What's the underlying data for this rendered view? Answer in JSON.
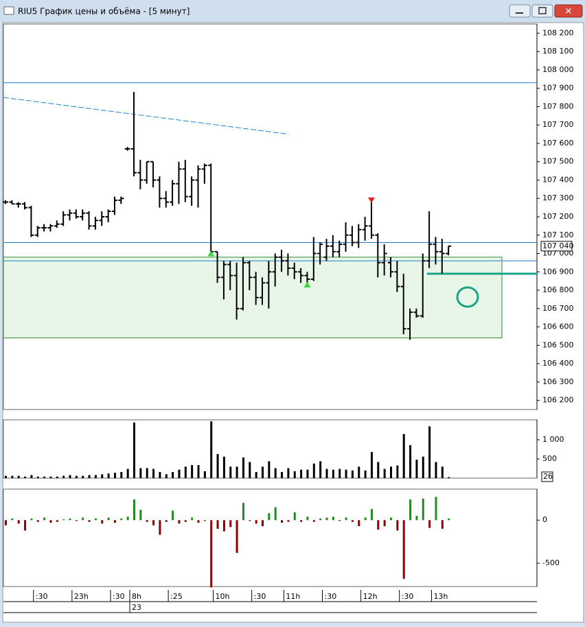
{
  "window": {
    "title": "RIU5 График цены и объёма - [5 минут]"
  },
  "chart_data": [
    {
      "type": "ohlc",
      "color": "#000000",
      "ylim": [
        106150,
        108250
      ],
      "yticks": [
        {
          "value": 106200,
          "label": "106 200"
        },
        {
          "value": 106300,
          "label": "106 300"
        },
        {
          "value": 106400,
          "label": "106 400"
        },
        {
          "value": 106500,
          "label": "106 500"
        },
        {
          "value": 106600,
          "label": "106 600"
        },
        {
          "value": 106700,
          "label": "106 700"
        },
        {
          "value": 106800,
          "label": "106 800"
        },
        {
          "value": 106900,
          "label": "106 900"
        },
        {
          "value": 107000,
          "label": "107 000"
        },
        {
          "value": 107100,
          "label": "107 100"
        },
        {
          "value": 107200,
          "label": "107 200"
        },
        {
          "value": 107300,
          "label": "107 300"
        },
        {
          "value": 107400,
          "label": "107 400"
        },
        {
          "value": 107500,
          "label": "107 500"
        },
        {
          "value": 107600,
          "label": "107 600"
        },
        {
          "value": 107700,
          "label": "107 700"
        },
        {
          "value": 107800,
          "label": "107 800"
        },
        {
          "value": 107900,
          "label": "107 900"
        },
        {
          "value": 108000,
          "label": "108 000"
        },
        {
          "value": 108100,
          "label": "108 100"
        },
        {
          "value": 108200,
          "label": "108 200"
        }
      ],
      "ohlc": [
        [
          107280,
          107290,
          107270,
          107280
        ],
        [
          107280,
          107290,
          107270,
          107270
        ],
        [
          107270,
          107280,
          107250,
          107270
        ],
        [
          107270,
          107280,
          107240,
          107250
        ],
        [
          107250,
          107260,
          107090,
          107100
        ],
        [
          107100,
          107150,
          107090,
          107140
        ],
        [
          107140,
          107160,
          107120,
          107140
        ],
        [
          107140,
          107160,
          107120,
          107150
        ],
        [
          107150,
          107180,
          107140,
          107160
        ],
        [
          107160,
          107230,
          107150,
          107210
        ],
        [
          107210,
          107240,
          107180,
          107220
        ],
        [
          107220,
          107240,
          107190,
          107200
        ],
        [
          107200,
          107240,
          107180,
          107220
        ],
        [
          107220,
          107230,
          107130,
          107150
        ],
        [
          107150,
          107200,
          107130,
          107180
        ],
        [
          107180,
          107230,
          107150,
          107200
        ],
        [
          107200,
          107240,
          107170,
          107230
        ],
        [
          107230,
          107310,
          107210,
          107290
        ],
        [
          107290,
          107310,
          107270,
          107300
        ],
        [
          107570,
          107580,
          107560,
          107570
        ],
        [
          107570,
          107880,
          107420,
          107440
        ],
        [
          107440,
          107510,
          107350,
          107400
        ],
        [
          107400,
          107500,
          107380,
          107500
        ],
        [
          107500,
          107500,
          107360,
          107400
        ],
        [
          107400,
          107420,
          107250,
          107300
        ],
        [
          107300,
          107340,
          107250,
          107280
        ],
        [
          107280,
          107400,
          107260,
          107380
        ],
        [
          107380,
          107500,
          107270,
          107460
        ],
        [
          107460,
          107510,
          107280,
          107310
        ],
        [
          107310,
          107420,
          107260,
          107400
        ],
        [
          107400,
          107480,
          107250,
          107460
        ],
        [
          107460,
          107490,
          107380,
          107480
        ],
        [
          107480,
          107490,
          107000,
          107010
        ],
        [
          107010,
          107010,
          106840,
          106870
        ],
        [
          106870,
          106960,
          106750,
          106940
        ],
        [
          106940,
          106960,
          106800,
          106880
        ],
        [
          106880,
          106950,
          106640,
          106700
        ],
        [
          106700,
          106980,
          106690,
          106950
        ],
        [
          106950,
          106960,
          106800,
          106870
        ],
        [
          106870,
          106900,
          106720,
          106760
        ],
        [
          106760,
          106870,
          106720,
          106840
        ],
        [
          106840,
          106960,
          106700,
          106900
        ],
        [
          106900,
          107000,
          106820,
          106980
        ],
        [
          106980,
          107020,
          106900,
          106960
        ],
        [
          106960,
          107000,
          106880,
          106920
        ],
        [
          106920,
          106950,
          106860,
          106900
        ],
        [
          106900,
          106920,
          106840,
          106880
        ],
        [
          106880,
          106900,
          106830,
          106860
        ],
        [
          106860,
          107090,
          106850,
          107000
        ],
        [
          107000,
          107060,
          106940,
          107050
        ],
        [
          106980,
          107080,
          106960,
          107040
        ],
        [
          107040,
          107100,
          106980,
          107010
        ],
        [
          107010,
          107070,
          106980,
          107050
        ],
        [
          107050,
          107170,
          107010,
          107100
        ],
        [
          107100,
          107150,
          107040,
          107060
        ],
        [
          107060,
          107160,
          107030,
          107130
        ],
        [
          107130,
          107200,
          107070,
          107150
        ],
        [
          107150,
          107290,
          107080,
          107100
        ],
        [
          107100,
          107110,
          106870,
          106950
        ],
        [
          106950,
          107050,
          106880,
          107000
        ],
        [
          106950,
          106980,
          106870,
          106900
        ],
        [
          106900,
          106960,
          106790,
          106820
        ],
        [
          106820,
          106890,
          106560,
          106590
        ],
        [
          106590,
          106700,
          106530,
          106680
        ],
        [
          106680,
          106700,
          106650,
          106660
        ],
        [
          106660,
          107000,
          106650,
          106960
        ],
        [
          106960,
          107230,
          106920,
          107050
        ],
        [
          107050,
          107090,
          106940,
          107010
        ],
        [
          107010,
          107080,
          106890,
          107000
        ],
        [
          107000,
          107040,
          106990,
          107040
        ]
      ],
      "hlines": [
        {
          "value": 107930,
          "color": "#1e7fd0"
        },
        {
          "value": 107060,
          "color": "#1e7fd0"
        },
        {
          "value": 106960,
          "color": "#1e7fd0"
        }
      ],
      "zone": {
        "from": 106540,
        "to": 106980,
        "color": "#e8f6e8",
        "border": "#2e8b2e"
      },
      "trendline": {
        "from": 107850,
        "to": 107650,
        "color": "#1e7fd0"
      },
      "level": {
        "value": 106890,
        "color": "#17a589"
      },
      "last_price": {
        "value": 107040,
        "label": "107 040"
      },
      "signals": [
        {
          "bar": 32,
          "value": 107000,
          "dir": "up",
          "color": "#33dd33"
        },
        {
          "bar": 47,
          "value": 106830,
          "dir": "up",
          "color": "#33dd33"
        },
        {
          "bar": 57,
          "value": 107290,
          "dir": "down",
          "color": "#dd2222"
        }
      ]
    },
    {
      "type": "bar",
      "color": "#000000",
      "ylim": [
        0,
        1520
      ],
      "yticks": [
        500,
        {
          "value": 1000,
          "label": "1 000"
        }
      ],
      "values": [
        60,
        60,
        60,
        40,
        80,
        40,
        40,
        40,
        40,
        60,
        80,
        60,
        60,
        80,
        80,
        100,
        120,
        140,
        160,
        240,
        1450,
        260,
        260,
        240,
        160,
        100,
        160,
        220,
        300,
        340,
        340,
        180,
        1480,
        630,
        560,
        300,
        300,
        540,
        420,
        160,
        300,
        440,
        260,
        160,
        260,
        180,
        220,
        220,
        380,
        440,
        240,
        220,
        240,
        220,
        200,
        300,
        200,
        680,
        420,
        240,
        300,
        330,
        1150,
        860,
        480,
        560,
        1350,
        420,
        300,
        26
      ]
    },
    {
      "type": "bar",
      "pos_color": "#1e8c1e",
      "neg_color": "#8b0000",
      "ylim": [
        -770,
        360
      ],
      "yticks": [
        -500,
        0
      ],
      "values": [
        -60,
        20,
        -40,
        -120,
        20,
        -20,
        30,
        -30,
        -20,
        10,
        20,
        -10,
        30,
        -20,
        20,
        -40,
        30,
        -30,
        20,
        40,
        240,
        120,
        -20,
        -60,
        -170,
        -20,
        110,
        -40,
        -20,
        30,
        -30,
        -10,
        -780,
        -100,
        -130,
        -80,
        -380,
        200,
        -10,
        -40,
        -70,
        80,
        150,
        -30,
        -20,
        90,
        -20,
        40,
        -20,
        20,
        30,
        40,
        -10,
        30,
        -20,
        -70,
        30,
        130,
        -110,
        -70,
        30,
        -120,
        -680,
        240,
        50,
        250,
        -90,
        270,
        -100,
        20
      ],
      "categories": [
        null,
        null,
        null,
        null,
        null,
        ":30",
        null,
        null,
        null,
        null,
        null,
        "23h",
        null,
        null,
        null,
        null,
        null,
        ":30",
        null,
        null,
        "8h",
        null,
        null,
        null,
        null,
        null,
        ":25",
        null,
        null,
        null,
        null,
        null,
        null,
        "10h",
        null,
        null,
        null,
        null,
        null,
        ":30",
        null,
        null,
        null,
        null,
        "11h",
        null,
        null,
        null,
        null,
        null,
        ":30",
        null,
        null,
        null,
        null,
        null,
        "12h",
        null,
        null,
        null,
        null,
        null,
        ":30",
        null,
        null,
        null,
        null,
        "13h",
        null,
        null
      ],
      "categories_row2": [
        null,
        null,
        null,
        null,
        null,
        null,
        null,
        null,
        null,
        null,
        null,
        null,
        null,
        null,
        null,
        null,
        null,
        null,
        null,
        null,
        "23",
        null,
        null,
        null,
        null,
        null,
        null,
        null,
        null,
        null,
        null,
        null,
        null,
        null,
        null,
        null,
        null,
        null,
        null,
        null,
        null,
        null,
        null,
        null,
        null,
        null,
        null,
        null,
        null,
        null,
        null,
        null,
        null,
        null,
        null,
        null,
        null,
        null,
        null,
        null,
        null,
        null,
        null,
        null,
        null,
        null,
        null,
        null,
        null,
        null
      ]
    }
  ]
}
